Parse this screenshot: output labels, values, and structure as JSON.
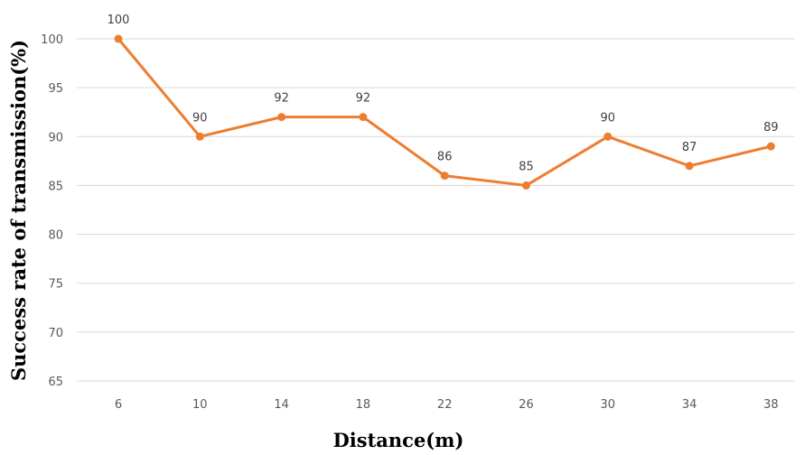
{
  "chart_data": {
    "type": "line",
    "categories": [
      "6",
      "10",
      "14",
      "18",
      "22",
      "26",
      "30",
      "34",
      "38"
    ],
    "series": [
      {
        "values": [
          100,
          90,
          92,
          92,
          86,
          85,
          90,
          87,
          89
        ],
        "color": "#ed7d31"
      }
    ],
    "data_labels": [
      "100",
      "90",
      "92",
      "92",
      "86",
      "85",
      "90",
      "87",
      "89"
    ],
    "xlabel": "Distance(m)",
    "ylabel": "Success rate of transmission(%)",
    "ylim": [
      65,
      100
    ],
    "yticks": [
      "65",
      "70",
      "75",
      "80",
      "85",
      "90",
      "95",
      "100"
    ],
    "grid": "horizontal",
    "legend": "none"
  }
}
